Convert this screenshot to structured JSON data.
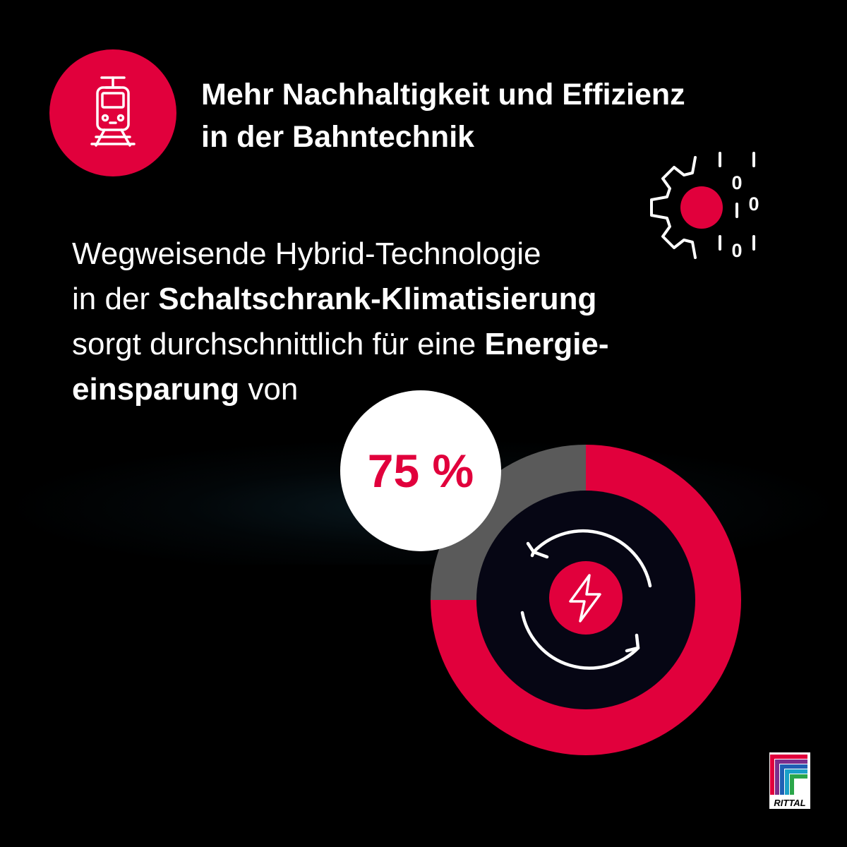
{
  "title": {
    "line1": "Mehr Nachhaltigkeit und Effizienz",
    "line2": "in der Bahntechnik"
  },
  "body": {
    "line1": "Wegweisende Hybrid-Technologie",
    "line2_prefix": "in der ",
    "line2_bold": "Schaltschrank-Klimatisierung",
    "line3_prefix": "sorgt durchschnittlich für eine ",
    "line3_bold": "Energie-",
    "line4_bold": "einsparung",
    "line4_suffix": " von"
  },
  "binary_digits": [
    "0",
    "0",
    "0"
  ],
  "value_label": "75 %",
  "logo_text": "RITTAL",
  "chart_data": {
    "type": "pie",
    "variant": "donut",
    "values": [
      75,
      25
    ],
    "value_label": "75 %",
    "colors": [
      "#e1003c",
      "#5a5a5a"
    ]
  },
  "colors": {
    "accent": "#e1003c",
    "background": "#000000",
    "remainder": "#5a5a5a",
    "inner": "#060614",
    "text": "#ffffff"
  },
  "icons": {
    "header": "tram-icon",
    "decor": "gear-binary-icon",
    "center": "lightning-bolt-icon",
    "cycle": "refresh-arrows-icon"
  }
}
